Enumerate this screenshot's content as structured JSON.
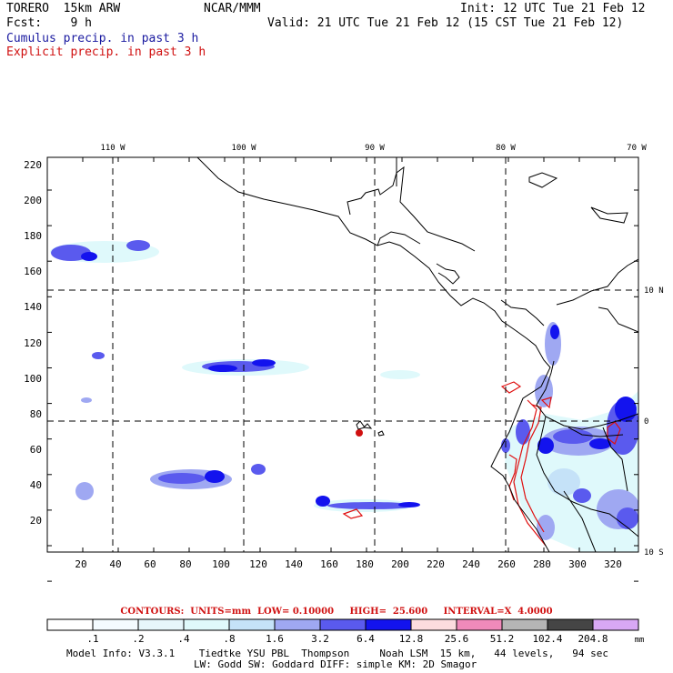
{
  "header": {
    "model": "TORERO  15km ARW",
    "org": "NCAR/MMM",
    "init": "Init: 12 UTC Tue 21 Feb 12",
    "fcst": "Fcst:    9 h",
    "valid": "Valid: 21 UTC Tue 21 Feb 12 (15 CST Tue 21 Feb 12)",
    "cumulus": "Cumulus precip. in past 3 h",
    "explicit": "Explicit precip. in past 3 h"
  },
  "map": {
    "lon_labels": [
      "110 W",
      "100 W",
      "90 W",
      "80 W",
      "70 W"
    ],
    "lat_labels": [
      "10 N",
      "0",
      "10 S"
    ],
    "x_ticks": [
      "20",
      "40",
      "60",
      "80",
      "100",
      "120",
      "140",
      "160",
      "180",
      "200",
      "220",
      "240",
      "260",
      "280",
      "300",
      "320"
    ],
    "y_ticks": [
      "220",
      "200",
      "180",
      "160",
      "140",
      "120",
      "100",
      "80",
      "60",
      "40",
      "20"
    ]
  },
  "contours_line": "CONTOURS:  UNITS=mm  LOW= 0.10000     HIGH=  25.600     INTERVAL=X  4.0000",
  "colorbar": {
    "labels": [
      ".1",
      ".2",
      ".4",
      ".8",
      "1.6",
      "3.2",
      "6.4",
      "12.8",
      "25.6",
      "51.2",
      "102.4",
      "204.8"
    ],
    "unit": "mm",
    "colors": [
      "#ffffff",
      "#f4fbff",
      "#e6f6fb",
      "#dff9fb",
      "#c5e2f8",
      "#9fa8f2",
      "#5a5aee",
      "#1313ee",
      "#fcdcde",
      "#f08aba",
      "#b5b5b5",
      "#454545",
      "#d8a8f4"
    ]
  },
  "footer": {
    "line1": "Model Info: V3.3.1    Tiedtke YSU PBL  Thompson     Noah LSM  15 km,   44 levels,   94 sec",
    "line2": "LW: Godd SW: Goddard DIFF: simple KM: 2D Smagor"
  }
}
